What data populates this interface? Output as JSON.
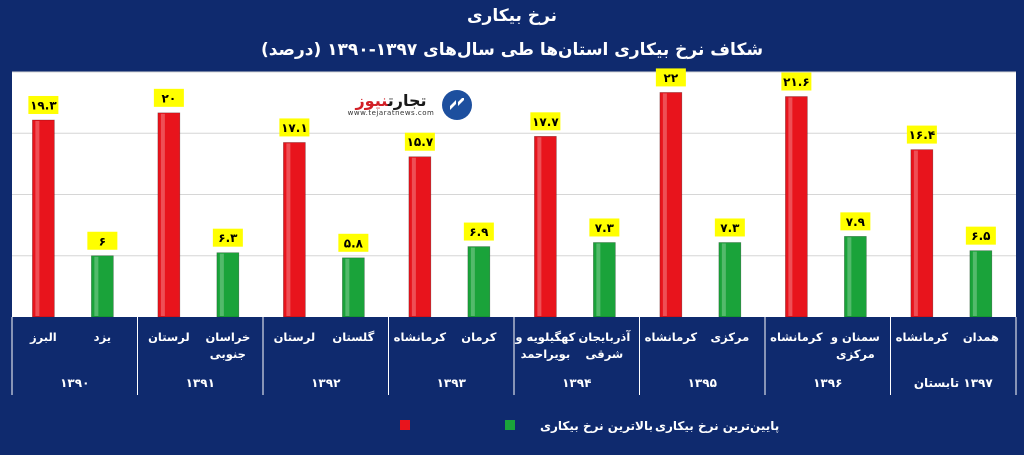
{
  "title": "نرخ بیکاری",
  "subtitle": "شکاف نرخ  بیکاری استان‌ها طی سال‌های ۱۳۹۷-۱۳۹۰ (درصد)",
  "logo": {
    "name_main": "تجارت",
    "name_accent": "نیوز",
    "url": "www.tejaratnews.com"
  },
  "colors": {
    "background": "#0f2a6e",
    "highest": "#e8141c",
    "lowest": "#1aa33a",
    "label_bg": "#ffff00"
  },
  "chart_data": {
    "type": "bar",
    "title": "شکاف نرخ  بیکاری استان‌ها طی سال‌های ۱۳۹۷-۱۳۹۰ (درصد)",
    "ylim": [
      0,
      24
    ],
    "grid": true,
    "legend_placement": "bottom",
    "legend": [
      {
        "name": "بالاترین نرخ بیکاری",
        "color": "#e8141c"
      },
      {
        "name": "پایین‌ترین نرخ بیکاری",
        "color": "#1aa33a"
      }
    ],
    "groups": [
      {
        "year": "۱۳۹۰",
        "bars": [
          {
            "province": "البرز",
            "value": 19.3,
            "label": "۱۹.۳",
            "series": "high"
          },
          {
            "province": "یزد",
            "value": 6,
            "label": "۶",
            "series": "low"
          }
        ]
      },
      {
        "year": "۱۳۹۱",
        "bars": [
          {
            "province": "لرستان",
            "value": 20,
            "label": "۲۰",
            "series": "high"
          },
          {
            "province": "خراسان جنوبی",
            "value": 6.3,
            "label": "۶.۳",
            "series": "low"
          }
        ]
      },
      {
        "year": "۱۳۹۲",
        "bars": [
          {
            "province": "لرستان",
            "value": 17.1,
            "label": "۱۷.۱",
            "series": "high"
          },
          {
            "province": "گلستان",
            "value": 5.8,
            "label": "۵.۸",
            "series": "low"
          }
        ]
      },
      {
        "year": "۱۳۹۳",
        "bars": [
          {
            "province": "کرمانشاه",
            "value": 15.7,
            "label": "۱۵.۷",
            "series": "high"
          },
          {
            "province": "کرمان",
            "value": 6.9,
            "label": "۶.۹",
            "series": "low"
          }
        ]
      },
      {
        "year": "۱۳۹۴",
        "bars": [
          {
            "province": "کهگیلویه و بویراحمد",
            "value": 17.7,
            "label": "۱۷.۷",
            "series": "high"
          },
          {
            "province": "آذربایجان شرقی",
            "value": 7.3,
            "label": "۷.۳",
            "series": "low"
          }
        ]
      },
      {
        "year": "۱۳۹۵",
        "bars": [
          {
            "province": "کرمانشاه",
            "value": 22,
            "label": "۲۲",
            "series": "high"
          },
          {
            "province": "مرکزی",
            "value": 7.3,
            "label": "۷.۳",
            "series": "low"
          }
        ]
      },
      {
        "year": "۱۳۹۶",
        "bars": [
          {
            "province": "کرمانشاه",
            "value": 21.6,
            "label": "۲۱.۶",
            "series": "high"
          },
          {
            "province": "سمنان و مرکزی",
            "value": 7.9,
            "label": "۷.۹",
            "series": "low"
          }
        ]
      },
      {
        "year": "۱۳۹۷ تابستان",
        "bars": [
          {
            "province": "کرمانشاه",
            "value": 16.4,
            "label": "۱۶.۴",
            "series": "high"
          },
          {
            "province": "همدان",
            "value": 6.5,
            "label": "۶.۵",
            "series": "low"
          }
        ]
      }
    ]
  }
}
